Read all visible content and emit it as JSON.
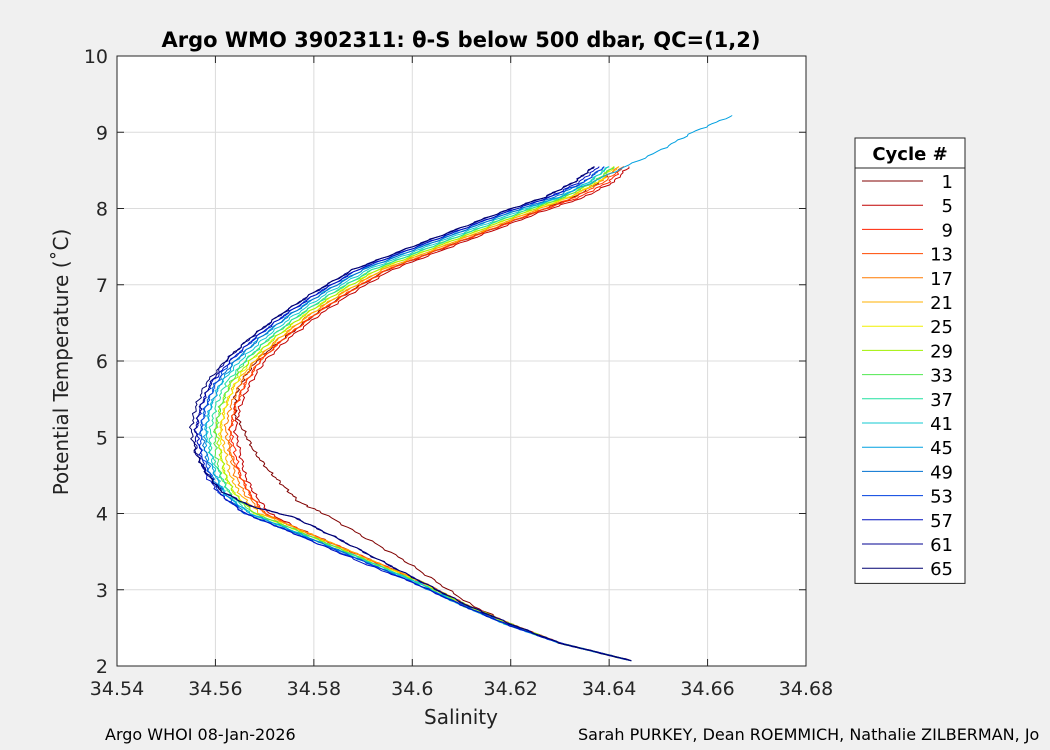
{
  "chart_data": {
    "type": "line",
    "title": "Argo WMO 3902311: θ-S below 500 dbar,  QC=(1,2)",
    "xlabel": "Salinity",
    "ylabel": "Potential Temperature (˚C)",
    "xlim": [
      34.54,
      34.68
    ],
    "ylim": [
      2,
      10
    ],
    "xticks": [
      "34.54",
      "34.56",
      "34.58",
      "34.6",
      "34.62",
      "34.64",
      "34.66",
      "34.68"
    ],
    "yticks": [
      "2",
      "3",
      "4",
      "5",
      "6",
      "7",
      "8",
      "9",
      "10"
    ],
    "grid": true,
    "legend_title": "Cycle #",
    "legend_position": "right",
    "series": [
      {
        "name": "1",
        "color": "#800000",
        "x": [
          34.6445,
          34.63,
          34.62,
          34.612,
          34.605,
          34.598,
          34.59,
          34.582,
          34.577,
          34.574,
          34.571,
          34.568,
          34.566,
          34.564,
          34.564,
          34.566,
          34.569,
          34.574,
          34.58,
          34.587,
          34.595,
          34.605,
          34.615,
          34.625,
          34.633,
          34.638,
          34.641
        ],
        "y": [
          2.07,
          2.3,
          2.55,
          2.8,
          3.1,
          3.4,
          3.7,
          4.0,
          4.15,
          4.35,
          4.55,
          4.8,
          5.05,
          5.3,
          5.55,
          5.8,
          6.05,
          6.3,
          6.6,
          6.9,
          7.2,
          7.45,
          7.7,
          7.95,
          8.15,
          8.35,
          8.5
        ]
      },
      {
        "name": "5",
        "color": "#c00000",
        "x": [
          34.6445,
          34.63,
          34.62,
          34.611,
          34.602,
          34.593,
          34.584,
          34.577,
          34.571,
          34.568,
          34.566,
          34.565,
          34.564,
          34.565,
          34.567,
          34.57,
          34.575,
          34.581,
          34.588,
          34.596,
          34.606,
          34.616,
          34.626,
          34.635,
          34.641,
          34.644
        ],
        "y": [
          2.07,
          2.3,
          2.55,
          2.8,
          3.1,
          3.35,
          3.6,
          3.8,
          4.0,
          4.25,
          4.5,
          4.8,
          5.1,
          5.4,
          5.7,
          6.0,
          6.3,
          6.6,
          6.9,
          7.2,
          7.45,
          7.7,
          7.95,
          8.15,
          8.35,
          8.55
        ]
      },
      {
        "name": "9",
        "color": "#ff2000",
        "x": [
          34.6445,
          34.63,
          34.62,
          34.611,
          34.602,
          34.593,
          34.584,
          34.576,
          34.57,
          34.567,
          34.565,
          34.564,
          34.563,
          34.564,
          34.566,
          34.569,
          34.574,
          34.58,
          34.587,
          34.595,
          34.605,
          34.615,
          34.625,
          34.634,
          34.64,
          34.643
        ],
        "y": [
          2.07,
          2.3,
          2.55,
          2.8,
          3.1,
          3.35,
          3.6,
          3.82,
          4.0,
          4.25,
          4.5,
          4.8,
          5.1,
          5.4,
          5.7,
          6.0,
          6.3,
          6.6,
          6.9,
          7.2,
          7.45,
          7.7,
          7.95,
          8.15,
          8.35,
          8.55
        ]
      },
      {
        "name": "13",
        "color": "#ff4a00",
        "x": [
          34.6445,
          34.63,
          34.62,
          34.611,
          34.602,
          34.593,
          34.584,
          34.576,
          34.57,
          34.567,
          34.565,
          34.563,
          34.563,
          34.564,
          34.566,
          34.569,
          34.574,
          34.58,
          34.587,
          34.595,
          34.605,
          34.615,
          34.625,
          34.633,
          34.639,
          34.643
        ],
        "y": [
          2.07,
          2.3,
          2.55,
          2.8,
          3.1,
          3.35,
          3.6,
          3.82,
          4.0,
          4.25,
          4.5,
          4.8,
          5.1,
          5.4,
          5.7,
          6.0,
          6.3,
          6.6,
          6.9,
          7.2,
          7.45,
          7.7,
          7.95,
          8.15,
          8.35,
          8.55
        ]
      },
      {
        "name": "17",
        "color": "#ff7a00",
        "x": [
          34.6445,
          34.63,
          34.62,
          34.611,
          34.602,
          34.593,
          34.584,
          34.576,
          34.57,
          34.566,
          34.564,
          34.563,
          34.562,
          34.563,
          34.565,
          34.568,
          34.573,
          34.579,
          34.586,
          34.594,
          34.604,
          34.614,
          34.624,
          34.632,
          34.638,
          34.642
        ],
        "y": [
          2.07,
          2.3,
          2.55,
          2.8,
          3.1,
          3.35,
          3.6,
          3.82,
          4.0,
          4.25,
          4.5,
          4.8,
          5.1,
          5.4,
          5.7,
          6.0,
          6.3,
          6.6,
          6.9,
          7.2,
          7.45,
          7.7,
          7.95,
          8.15,
          8.35,
          8.55
        ]
      },
      {
        "name": "21",
        "color": "#ffb000",
        "x": [
          34.6445,
          34.63,
          34.62,
          34.611,
          34.602,
          34.593,
          34.584,
          34.576,
          34.569,
          34.565,
          34.563,
          34.562,
          34.561,
          34.562,
          34.564,
          34.568,
          34.573,
          34.579,
          34.586,
          34.594,
          34.604,
          34.614,
          34.624,
          34.632,
          34.638,
          34.642
        ],
        "y": [
          2.07,
          2.3,
          2.55,
          2.8,
          3.1,
          3.35,
          3.6,
          3.82,
          4.0,
          4.25,
          4.5,
          4.8,
          5.1,
          5.4,
          5.7,
          6.0,
          6.3,
          6.6,
          6.9,
          7.2,
          7.45,
          7.7,
          7.95,
          8.15,
          8.35,
          8.55
        ]
      },
      {
        "name": "25",
        "color": "#f0f000",
        "x": [
          34.6445,
          34.63,
          34.62,
          34.611,
          34.602,
          34.592,
          34.583,
          34.575,
          34.568,
          34.564,
          34.562,
          34.561,
          34.561,
          34.562,
          34.564,
          34.567,
          34.572,
          34.578,
          34.585,
          34.593,
          34.603,
          34.613,
          34.623,
          34.632,
          34.638,
          34.641
        ],
        "y": [
          2.07,
          2.3,
          2.55,
          2.8,
          3.1,
          3.35,
          3.6,
          3.82,
          4.0,
          4.25,
          4.5,
          4.8,
          5.1,
          5.4,
          5.7,
          6.0,
          6.3,
          6.6,
          6.9,
          7.2,
          7.45,
          7.7,
          7.95,
          8.15,
          8.35,
          8.55
        ]
      },
      {
        "name": "29",
        "color": "#a0f000",
        "x": [
          34.6445,
          34.63,
          34.62,
          34.611,
          34.601,
          34.592,
          34.583,
          34.575,
          34.568,
          34.564,
          34.562,
          34.561,
          34.56,
          34.561,
          34.563,
          34.567,
          34.572,
          34.578,
          34.585,
          34.593,
          34.603,
          34.613,
          34.623,
          34.631,
          34.637,
          34.641
        ],
        "y": [
          2.07,
          2.3,
          2.55,
          2.8,
          3.1,
          3.35,
          3.6,
          3.82,
          4.0,
          4.25,
          4.5,
          4.8,
          5.1,
          5.4,
          5.7,
          6.0,
          6.3,
          6.6,
          6.9,
          7.2,
          7.45,
          7.7,
          7.95,
          8.15,
          8.35,
          8.55
        ]
      },
      {
        "name": "33",
        "color": "#50e850",
        "x": [
          34.6445,
          34.63,
          34.619,
          34.61,
          34.601,
          34.592,
          34.583,
          34.575,
          34.568,
          34.563,
          34.561,
          34.56,
          34.56,
          34.561,
          34.563,
          34.566,
          34.571,
          34.577,
          34.584,
          34.592,
          34.602,
          34.612,
          34.622,
          34.631,
          34.637,
          34.641
        ],
        "y": [
          2.07,
          2.3,
          2.55,
          2.8,
          3.1,
          3.35,
          3.6,
          3.82,
          4.0,
          4.25,
          4.5,
          4.8,
          5.1,
          5.4,
          5.7,
          6.0,
          6.3,
          6.6,
          6.9,
          7.2,
          7.45,
          7.7,
          7.95,
          8.15,
          8.35,
          8.55
        ]
      },
      {
        "name": "37",
        "color": "#20e0a0",
        "x": [
          34.6445,
          34.63,
          34.619,
          34.61,
          34.601,
          34.592,
          34.582,
          34.574,
          34.567,
          34.563,
          34.561,
          34.559,
          34.559,
          34.56,
          34.562,
          34.566,
          34.571,
          34.577,
          34.584,
          34.592,
          34.602,
          34.612,
          34.622,
          34.63,
          34.636,
          34.64
        ],
        "y": [
          2.07,
          2.3,
          2.55,
          2.8,
          3.1,
          3.35,
          3.6,
          3.82,
          4.0,
          4.25,
          4.5,
          4.8,
          5.1,
          5.4,
          5.7,
          6.0,
          6.3,
          6.6,
          6.9,
          7.2,
          7.45,
          7.7,
          7.95,
          8.15,
          8.35,
          8.55
        ]
      },
      {
        "name": "41",
        "color": "#10c8d0",
        "x": [
          34.6445,
          34.63,
          34.619,
          34.61,
          34.601,
          34.591,
          34.582,
          34.574,
          34.567,
          34.562,
          34.56,
          34.559,
          34.558,
          34.559,
          34.561,
          34.565,
          34.57,
          34.576,
          34.583,
          34.591,
          34.601,
          34.611,
          34.621,
          34.63,
          34.636,
          34.64
        ],
        "y": [
          2.07,
          2.3,
          2.55,
          2.8,
          3.1,
          3.35,
          3.6,
          3.82,
          4.0,
          4.25,
          4.5,
          4.8,
          5.1,
          5.4,
          5.7,
          6.0,
          6.3,
          6.6,
          6.9,
          7.2,
          7.45,
          7.7,
          7.95,
          8.15,
          8.35,
          8.55
        ]
      },
      {
        "name": "45",
        "color": "#00a0e0",
        "x": [
          34.6445,
          34.63,
          34.619,
          34.61,
          34.6,
          34.591,
          34.582,
          34.574,
          34.567,
          34.562,
          34.56,
          34.558,
          34.558,
          34.559,
          34.561,
          34.564,
          34.569,
          34.575,
          34.582,
          34.59,
          34.6,
          34.61,
          34.62,
          34.63,
          34.64,
          34.65,
          34.657,
          34.665
        ],
        "y": [
          2.07,
          2.3,
          2.55,
          2.8,
          3.1,
          3.35,
          3.6,
          3.82,
          4.0,
          4.25,
          4.5,
          4.8,
          5.1,
          5.4,
          5.7,
          6.0,
          6.3,
          6.6,
          6.9,
          7.2,
          7.45,
          7.7,
          7.95,
          8.15,
          8.45,
          8.75,
          9.0,
          9.22
        ]
      },
      {
        "name": "49",
        "color": "#0070d0",
        "x": [
          34.6445,
          34.63,
          34.619,
          34.61,
          34.6,
          34.591,
          34.582,
          34.573,
          34.566,
          34.562,
          34.559,
          34.558,
          34.557,
          34.558,
          34.56,
          34.564,
          34.569,
          34.575,
          34.582,
          34.59,
          34.6,
          34.61,
          34.62,
          34.629,
          34.635,
          34.639
        ],
        "y": [
          2.07,
          2.3,
          2.55,
          2.8,
          3.1,
          3.35,
          3.6,
          3.82,
          4.0,
          4.25,
          4.5,
          4.8,
          5.1,
          5.4,
          5.7,
          6.0,
          6.3,
          6.6,
          6.9,
          7.2,
          7.45,
          7.7,
          7.95,
          8.15,
          8.35,
          8.55
        ]
      },
      {
        "name": "53",
        "color": "#0040e0",
        "x": [
          34.6445,
          34.63,
          34.619,
          34.61,
          34.6,
          34.591,
          34.581,
          34.573,
          34.566,
          34.561,
          34.559,
          34.557,
          34.557,
          34.558,
          34.56,
          34.563,
          34.568,
          34.574,
          34.581,
          34.589,
          34.599,
          34.609,
          34.619,
          34.628,
          34.635,
          34.639
        ],
        "y": [
          2.07,
          2.3,
          2.55,
          2.8,
          3.1,
          3.35,
          3.6,
          3.82,
          4.0,
          4.25,
          4.5,
          4.8,
          5.1,
          5.4,
          5.7,
          6.0,
          6.3,
          6.6,
          6.9,
          7.2,
          7.45,
          7.7,
          7.95,
          8.15,
          8.35,
          8.55
        ]
      },
      {
        "name": "57",
        "color": "#0010c0",
        "x": [
          34.6445,
          34.63,
          34.619,
          34.61,
          34.6,
          34.59,
          34.581,
          34.573,
          34.566,
          34.561,
          34.558,
          34.557,
          34.556,
          34.557,
          34.559,
          34.563,
          34.568,
          34.574,
          34.581,
          34.589,
          34.599,
          34.609,
          34.619,
          34.628,
          34.634,
          34.638
        ],
        "y": [
          2.07,
          2.3,
          2.55,
          2.8,
          3.1,
          3.35,
          3.6,
          3.82,
          4.0,
          4.25,
          4.5,
          4.8,
          5.1,
          5.4,
          5.7,
          6.0,
          6.3,
          6.6,
          6.9,
          7.2,
          7.45,
          7.7,
          7.95,
          8.15,
          8.35,
          8.55
        ]
      },
      {
        "name": "61",
        "color": "#000090",
        "x": [
          34.6445,
          34.63,
          34.62,
          34.611,
          34.602,
          34.593,
          34.584,
          34.576,
          34.567,
          34.561,
          34.558,
          34.556,
          34.556,
          34.557,
          34.559,
          34.562,
          34.567,
          34.573,
          34.58,
          34.588,
          34.598,
          34.608,
          34.618,
          34.627,
          34.633,
          34.637
        ],
        "y": [
          2.07,
          2.3,
          2.55,
          2.8,
          3.1,
          3.4,
          3.7,
          3.95,
          4.1,
          4.3,
          4.55,
          4.8,
          5.1,
          5.4,
          5.7,
          6.0,
          6.3,
          6.6,
          6.9,
          7.2,
          7.45,
          7.7,
          7.95,
          8.15,
          8.35,
          8.55
        ]
      },
      {
        "name": "65",
        "color": "#000070",
        "x": [
          34.6445,
          34.63,
          34.62,
          34.611,
          34.602,
          34.593,
          34.584,
          34.576,
          34.567,
          34.561,
          34.558,
          34.556,
          34.555,
          34.556,
          34.558,
          34.562,
          34.567,
          34.573,
          34.58,
          34.588,
          34.598,
          34.608,
          34.618,
          34.627,
          34.633,
          34.637
        ],
        "y": [
          2.07,
          2.3,
          2.55,
          2.8,
          3.1,
          3.4,
          3.7,
          3.95,
          4.1,
          4.3,
          4.55,
          4.8,
          5.1,
          5.4,
          5.7,
          6.0,
          6.3,
          6.6,
          6.9,
          7.2,
          7.45,
          7.7,
          7.95,
          8.15,
          8.35,
          8.55
        ]
      }
    ]
  },
  "footer": {
    "left": "Argo WHOI 08-Jan-2026",
    "right": "Sarah PURKEY, Dean ROEMMICH, Nathalie ZILBERMAN, Jo"
  }
}
